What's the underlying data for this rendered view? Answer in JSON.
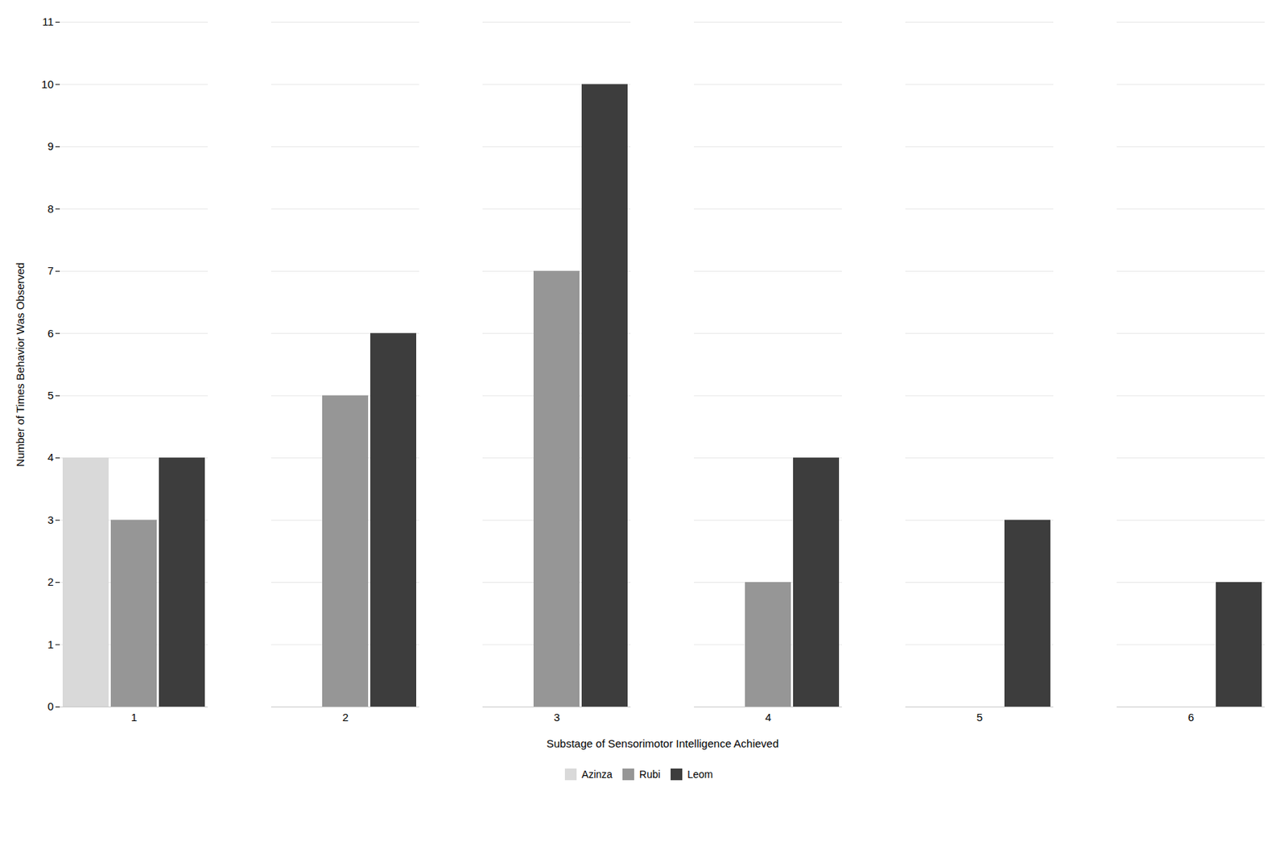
{
  "chart_data": {
    "type": "bar",
    "xlabel": "Substage of Sensorimotor Intelligence Achieved",
    "ylabel": "Number of Times Behavior Was Observed",
    "categories": [
      1,
      2,
      3,
      4,
      5,
      6
    ],
    "series": [
      {
        "name": "Azinza",
        "color": "#d9d9d9",
        "values": [
          4,
          0,
          0,
          0,
          0,
          0
        ]
      },
      {
        "name": "Rubi",
        "color": "#969696",
        "values": [
          3,
          5,
          7,
          2,
          0,
          0
        ]
      },
      {
        "name": "Leom",
        "color": "#3d3d3d",
        "values": [
          4,
          6,
          10,
          4,
          3,
          2
        ]
      }
    ],
    "ylim": [
      0,
      11
    ],
    "yticks": [
      0,
      1,
      2,
      3,
      4,
      5,
      6,
      7,
      8,
      9,
      10,
      11
    ],
    "grid": true,
    "legend": "bottom"
  }
}
